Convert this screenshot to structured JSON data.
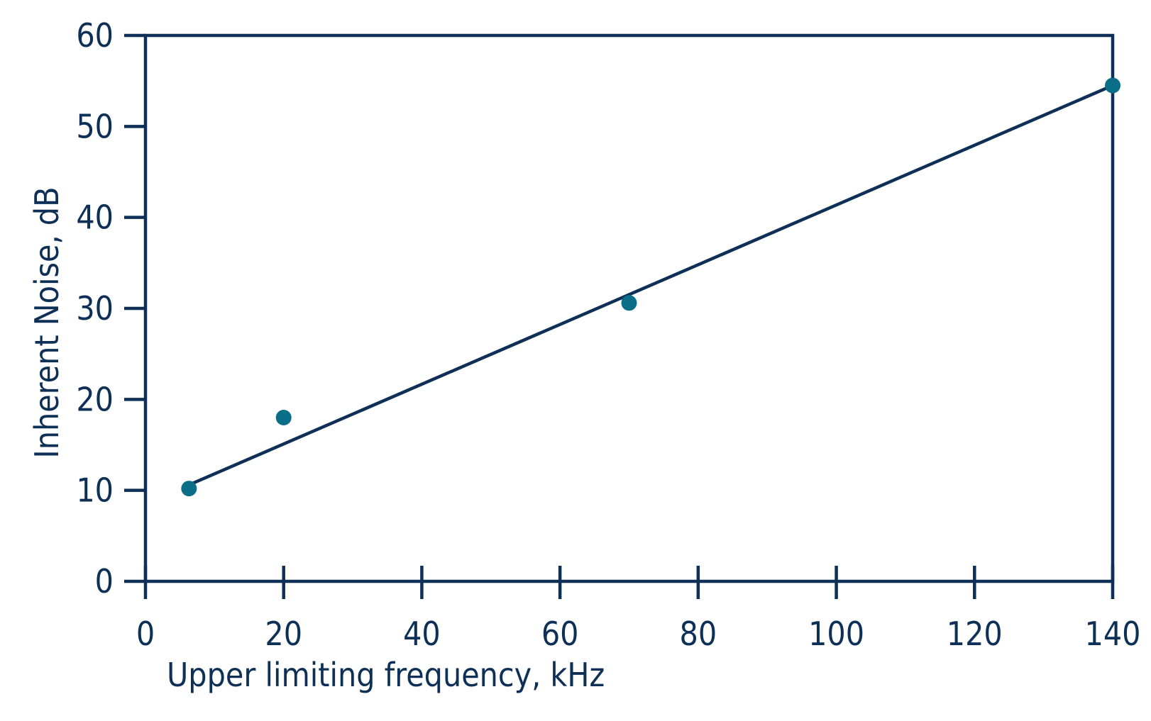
{
  "chart_data": {
    "type": "scatter",
    "title": "",
    "xlabel": "Upper limiting frequency, kHz",
    "ylabel": "Inherent Noise, dB",
    "xlim": [
      0,
      140
    ],
    "ylim": [
      0,
      60
    ],
    "xticks": [
      0,
      20,
      40,
      60,
      80,
      100,
      120,
      140
    ],
    "yticks": [
      0,
      10,
      20,
      30,
      40,
      50,
      60
    ],
    "grid": false,
    "legend": "none",
    "series": [
      {
        "type": "scatter",
        "x": [
          6.3,
          20,
          70,
          140
        ],
        "y": [
          10.2,
          18,
          30.6,
          54.5
        ]
      },
      {
        "type": "line",
        "x": [
          6.3,
          140
        ],
        "y": [
          10.6,
          54.5
        ]
      }
    ],
    "colors": {
      "axis": "#0e3057",
      "points": "#0b6e89",
      "line": "#0e3057"
    }
  }
}
